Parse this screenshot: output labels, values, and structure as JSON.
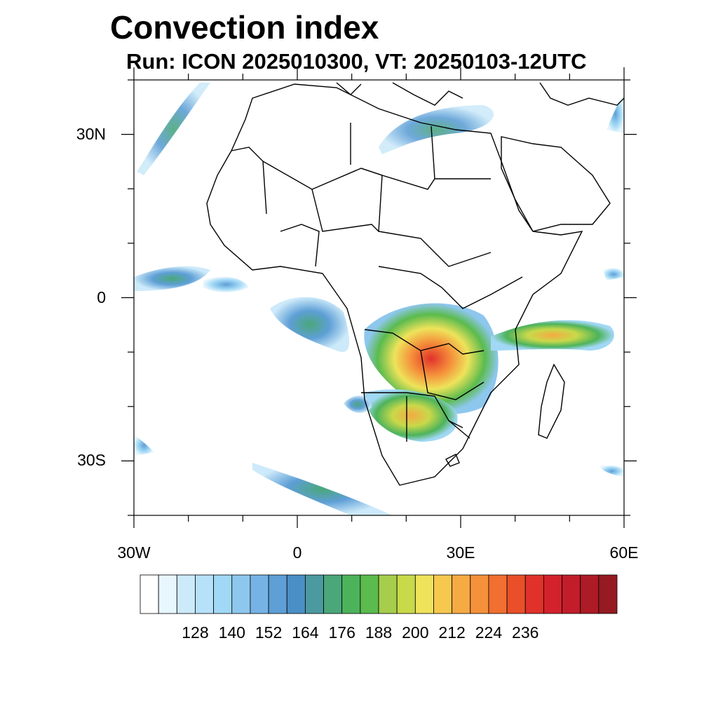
{
  "title": "Convection index",
  "subtitle": "Run: ICON 2025010300,  VT: 20250103-12UTC",
  "map": {
    "lon_range": [
      -30,
      60
    ],
    "lat_range": [
      -40,
      40
    ],
    "lat_labels": [
      {
        "lat": 30,
        "text": "30N"
      },
      {
        "lat": 0,
        "text": "0"
      },
      {
        "lat": -30,
        "text": "30S"
      }
    ],
    "lon_labels": [
      {
        "lon": -30,
        "text": "30W"
      },
      {
        "lon": 0,
        "text": "0"
      },
      {
        "lon": 30,
        "text": "30E"
      },
      {
        "lon": 60,
        "text": "60E"
      }
    ]
  },
  "colorbar": {
    "labels": [
      "128",
      "140",
      "152",
      "164",
      "176",
      "188",
      "200",
      "212",
      "224",
      "236"
    ],
    "colors": [
      "#ffffff",
      "#e8f6fd",
      "#cdeafa",
      "#b6e1f9",
      "#a1d8f5",
      "#8ec7ee",
      "#76b3e4",
      "#5e9fd6",
      "#4a8fc5",
      "#4b9aa0",
      "#4aa77a",
      "#4db35b",
      "#5bbb4e",
      "#a6ce4c",
      "#c8d94a",
      "#eee35a",
      "#f7c84e",
      "#f5aa44",
      "#f5903b",
      "#f16f30",
      "#e95029",
      "#e0322a",
      "#d3222c",
      "#c21d2a",
      "#ad1b26",
      "#951a21"
    ]
  }
}
